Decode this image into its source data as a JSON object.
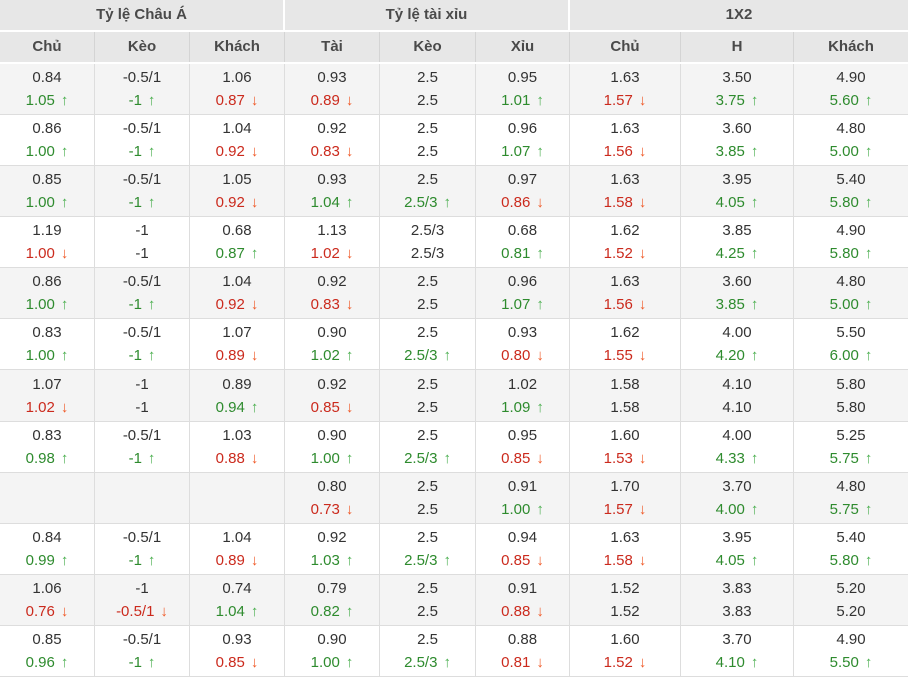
{
  "header": {
    "groups": [
      {
        "name": "asian-handicap",
        "label": "Tỷ lệ Châu Á"
      },
      {
        "name": "over-under",
        "label": "Tỷ lệ tài xỉu"
      },
      {
        "name": "1x2",
        "label": "1X2"
      }
    ],
    "columns": [
      {
        "key": "asia-home",
        "label": "Chủ"
      },
      {
        "key": "asia-line",
        "label": "Kèo"
      },
      {
        "key": "asia-away",
        "label": "Khách"
      },
      {
        "key": "ou-over",
        "label": "Tài"
      },
      {
        "key": "ou-line",
        "label": "Kèo"
      },
      {
        "key": "ou-under",
        "label": "Xỉu"
      },
      {
        "key": "1x2-home",
        "label": "Chủ"
      },
      {
        "key": "1x2-draw",
        "label": "H"
      },
      {
        "key": "1x2-away",
        "label": "Khách"
      }
    ]
  },
  "colors": {
    "up": "#2e8b2e",
    "down": "#cb2a1d",
    "up_arrow": "#4caf50",
    "down_arrow": "#f05a28",
    "header_bg": "#e7e7e7",
    "shaded_row_bg": "#f4f4f4"
  },
  "rows": [
    [
      [
        "0.84",
        "1.05",
        "up"
      ],
      [
        "-0.5/1",
        "-1",
        "up"
      ],
      [
        "1.06",
        "0.87",
        "down"
      ],
      [
        "0.93",
        "0.89",
        "down"
      ],
      [
        "2.5",
        "2.5",
        ""
      ],
      [
        "0.95",
        "1.01",
        "up"
      ],
      [
        "1.63",
        "1.57",
        "down"
      ],
      [
        "3.50",
        "3.75",
        "up"
      ],
      [
        "4.90",
        "5.60",
        "up"
      ]
    ],
    [
      [
        "0.86",
        "1.00",
        "up"
      ],
      [
        "-0.5/1",
        "-1",
        "up"
      ],
      [
        "1.04",
        "0.92",
        "down"
      ],
      [
        "0.92",
        "0.83",
        "down"
      ],
      [
        "2.5",
        "2.5",
        ""
      ],
      [
        "0.96",
        "1.07",
        "up"
      ],
      [
        "1.63",
        "1.56",
        "down"
      ],
      [
        "3.60",
        "3.85",
        "up"
      ],
      [
        "4.80",
        "5.00",
        "up"
      ]
    ],
    [
      [
        "0.85",
        "1.00",
        "up"
      ],
      [
        "-0.5/1",
        "-1",
        "up"
      ],
      [
        "1.05",
        "0.92",
        "down"
      ],
      [
        "0.93",
        "1.04",
        "up"
      ],
      [
        "2.5",
        "2.5/3",
        "up"
      ],
      [
        "0.97",
        "0.86",
        "down"
      ],
      [
        "1.63",
        "1.58",
        "down"
      ],
      [
        "3.95",
        "4.05",
        "up"
      ],
      [
        "5.40",
        "5.80",
        "up"
      ]
    ],
    [
      [
        "1.19",
        "1.00",
        "down"
      ],
      [
        "-1",
        "-1",
        ""
      ],
      [
        "0.68",
        "0.87",
        "up"
      ],
      [
        "1.13",
        "1.02",
        "down"
      ],
      [
        "2.5/3",
        "2.5/3",
        ""
      ],
      [
        "0.68",
        "0.81",
        "up"
      ],
      [
        "1.62",
        "1.52",
        "down"
      ],
      [
        "3.85",
        "4.25",
        "up"
      ],
      [
        "4.90",
        "5.80",
        "up"
      ]
    ],
    [
      [
        "0.86",
        "1.00",
        "up"
      ],
      [
        "-0.5/1",
        "-1",
        "up"
      ],
      [
        "1.04",
        "0.92",
        "down"
      ],
      [
        "0.92",
        "0.83",
        "down"
      ],
      [
        "2.5",
        "2.5",
        ""
      ],
      [
        "0.96",
        "1.07",
        "up"
      ],
      [
        "1.63",
        "1.56",
        "down"
      ],
      [
        "3.60",
        "3.85",
        "up"
      ],
      [
        "4.80",
        "5.00",
        "up"
      ]
    ],
    [
      [
        "0.83",
        "1.00",
        "up"
      ],
      [
        "-0.5/1",
        "-1",
        "up"
      ],
      [
        "1.07",
        "0.89",
        "down"
      ],
      [
        "0.90",
        "1.02",
        "up"
      ],
      [
        "2.5",
        "2.5/3",
        "up"
      ],
      [
        "0.93",
        "0.80",
        "down"
      ],
      [
        "1.62",
        "1.55",
        "down"
      ],
      [
        "4.00",
        "4.20",
        "up"
      ],
      [
        "5.50",
        "6.00",
        "up"
      ]
    ],
    [
      [
        "1.07",
        "1.02",
        "down"
      ],
      [
        "-1",
        "-1",
        ""
      ],
      [
        "0.89",
        "0.94",
        "up"
      ],
      [
        "0.92",
        "0.85",
        "down"
      ],
      [
        "2.5",
        "2.5",
        ""
      ],
      [
        "1.02",
        "1.09",
        "up"
      ],
      [
        "1.58",
        "1.58",
        ""
      ],
      [
        "4.10",
        "4.10",
        ""
      ],
      [
        "5.80",
        "5.80",
        ""
      ]
    ],
    [
      [
        "0.83",
        "0.98",
        "up"
      ],
      [
        "-0.5/1",
        "-1",
        "up"
      ],
      [
        "1.03",
        "0.88",
        "down"
      ],
      [
        "0.90",
        "1.00",
        "up"
      ],
      [
        "2.5",
        "2.5/3",
        "up"
      ],
      [
        "0.95",
        "0.85",
        "down"
      ],
      [
        "1.60",
        "1.53",
        "down"
      ],
      [
        "4.00",
        "4.33",
        "up"
      ],
      [
        "5.25",
        "5.75",
        "up"
      ]
    ],
    [
      [
        "",
        "",
        ""
      ],
      [
        "",
        "",
        ""
      ],
      [
        "",
        "",
        ""
      ],
      [
        "0.80",
        "0.73",
        "down"
      ],
      [
        "2.5",
        "2.5",
        ""
      ],
      [
        "0.91",
        "1.00",
        "up"
      ],
      [
        "1.70",
        "1.57",
        "down"
      ],
      [
        "3.70",
        "4.00",
        "up"
      ],
      [
        "4.80",
        "5.75",
        "up"
      ]
    ],
    [
      [
        "0.84",
        "0.99",
        "up"
      ],
      [
        "-0.5/1",
        "-1",
        "up"
      ],
      [
        "1.04",
        "0.89",
        "down"
      ],
      [
        "0.92",
        "1.03",
        "up"
      ],
      [
        "2.5",
        "2.5/3",
        "up"
      ],
      [
        "0.94",
        "0.85",
        "down"
      ],
      [
        "1.63",
        "1.58",
        "down"
      ],
      [
        "3.95",
        "4.05",
        "up"
      ],
      [
        "5.40",
        "5.80",
        "up"
      ]
    ],
    [
      [
        "1.06",
        "0.76",
        "down"
      ],
      [
        "-1",
        "-0.5/1",
        "down"
      ],
      [
        "0.74",
        "1.04",
        "up"
      ],
      [
        "0.79",
        "0.82",
        "up"
      ],
      [
        "2.5",
        "2.5",
        ""
      ],
      [
        "0.91",
        "0.88",
        "down"
      ],
      [
        "1.52",
        "1.52",
        ""
      ],
      [
        "3.83",
        "3.83",
        ""
      ],
      [
        "5.20",
        "5.20",
        ""
      ]
    ],
    [
      [
        "0.85",
        "0.96",
        "up"
      ],
      [
        "-0.5/1",
        "-1",
        "up"
      ],
      [
        "0.93",
        "0.85",
        "down"
      ],
      [
        "0.90",
        "1.00",
        "up"
      ],
      [
        "2.5",
        "2.5/3",
        "up"
      ],
      [
        "0.88",
        "0.81",
        "down"
      ],
      [
        "1.60",
        "1.52",
        "down"
      ],
      [
        "3.70",
        "4.10",
        "up"
      ],
      [
        "4.90",
        "5.50",
        "up"
      ]
    ]
  ]
}
